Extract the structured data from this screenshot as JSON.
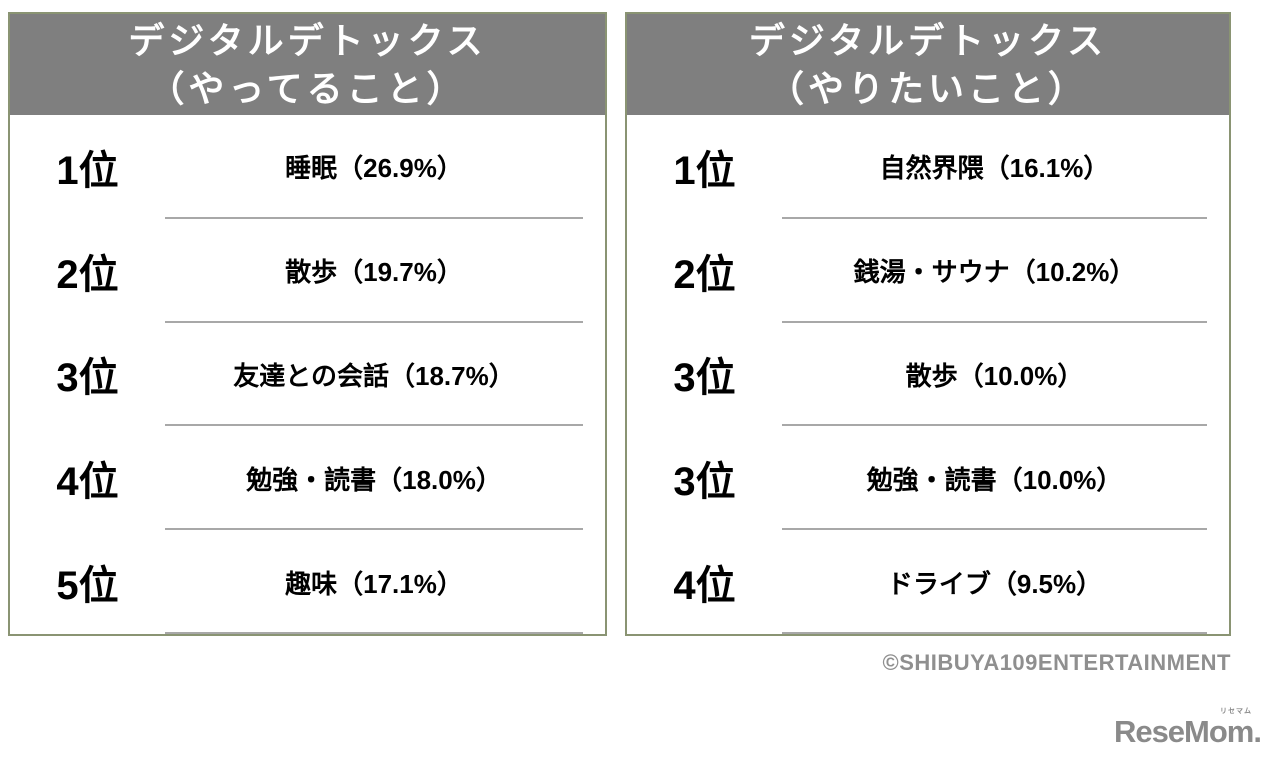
{
  "tables": [
    {
      "title_line1": "デジタルデトックス",
      "title_line2": "（やってること）",
      "rows": [
        {
          "rank": "1位",
          "item": "睡眠（26.9%）"
        },
        {
          "rank": "2位",
          "item": "散歩（19.7%）"
        },
        {
          "rank": "3位",
          "item": "友達との会話（18.7%）"
        },
        {
          "rank": "4位",
          "item": "勉強・読書（18.0%）"
        },
        {
          "rank": "5位",
          "item": "趣味（17.1%）"
        }
      ]
    },
    {
      "title_line1": "デジタルデトックス",
      "title_line2": "（やりたいこと）",
      "rows": [
        {
          "rank": "1位",
          "item": "自然界隈（16.1%）"
        },
        {
          "rank": "2位",
          "item": "銭湯・サウナ（10.2%）"
        },
        {
          "rank": "3位",
          "item": "散歩（10.0%）"
        },
        {
          "rank": "3位",
          "item": "勉強・読書（10.0%）"
        },
        {
          "rank": "4位",
          "item": "ドライブ（9.5%）"
        }
      ]
    }
  ],
  "footer": {
    "copyright": "©SHIBUYA109ENTERTAINMENT",
    "logo_text": "ReseMom",
    "logo_ruby": "リセマム",
    "logo_dot": "."
  },
  "colors": {
    "table_border": "#8a9473",
    "header_background": "#7f7f7f",
    "header_text": "#ffffff",
    "row_separator": "#a8a8a8",
    "body_text": "#000000",
    "copyright_text": "#8f8f8f",
    "logo_gray": "#8a8a8a"
  },
  "chart_data": [
    {
      "type": "table",
      "title": "デジタルデトックス（やってること）",
      "ranks": [
        "1位",
        "2位",
        "3位",
        "4位",
        "5位"
      ],
      "categories": [
        "睡眠",
        "散歩",
        "友達との会話",
        "勉強・読書",
        "趣味"
      ],
      "values": [
        26.9,
        19.7,
        18.7,
        18.0,
        17.1
      ],
      "unit": "%"
    },
    {
      "type": "table",
      "title": "デジタルデトックス（やりたいこと）",
      "ranks": [
        "1位",
        "2位",
        "3位",
        "3位",
        "4位"
      ],
      "categories": [
        "自然界隈",
        "銭湯・サウナ",
        "散歩",
        "勉強・読書",
        "ドライブ"
      ],
      "values": [
        16.1,
        10.2,
        10.0,
        10.0,
        9.5
      ],
      "unit": "%"
    }
  ]
}
